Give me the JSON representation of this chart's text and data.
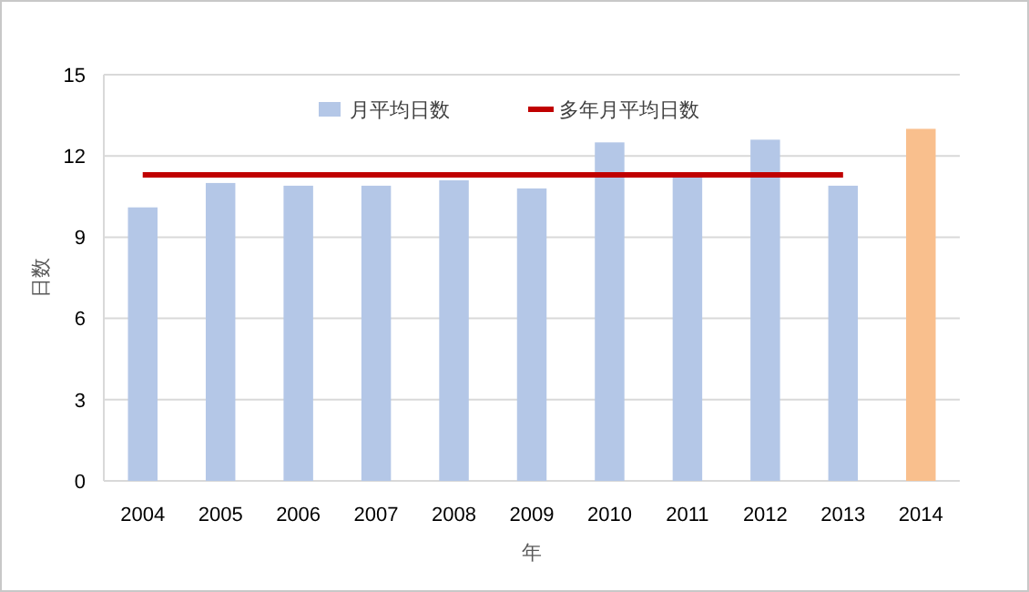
{
  "chart_data": {
    "type": "bar",
    "xlabel": "年",
    "ylabel": "日数",
    "categories": [
      "2004",
      "2005",
      "2006",
      "2007",
      "2008",
      "2009",
      "2010",
      "2011",
      "2012",
      "2013",
      "2014"
    ],
    "series": [
      {
        "name": "月平均日数",
        "color": "#b4c7e7",
        "colors": [
          "#b4c7e7",
          "#b4c7e7",
          "#b4c7e7",
          "#b4c7e7",
          "#b4c7e7",
          "#b4c7e7",
          "#b4c7e7",
          "#b4c7e7",
          "#b4c7e7",
          "#b4c7e7",
          "#f9bf8d"
        ],
        "values": [
          10.1,
          11.0,
          10.9,
          10.9,
          11.1,
          10.8,
          12.5,
          11.4,
          12.6,
          10.9,
          13.0
        ]
      },
      {
        "name": "多年月平均日数",
        "type": "line",
        "color": "#c00000",
        "values": [
          11.3,
          11.3,
          11.3,
          11.3,
          11.3,
          11.3,
          11.3,
          11.3,
          11.3,
          11.3,
          null
        ]
      }
    ],
    "ylim": [
      0,
      15
    ],
    "yticks": [
      0,
      3,
      6,
      9,
      12,
      15
    ],
    "grid": "y",
    "legend": "top"
  }
}
